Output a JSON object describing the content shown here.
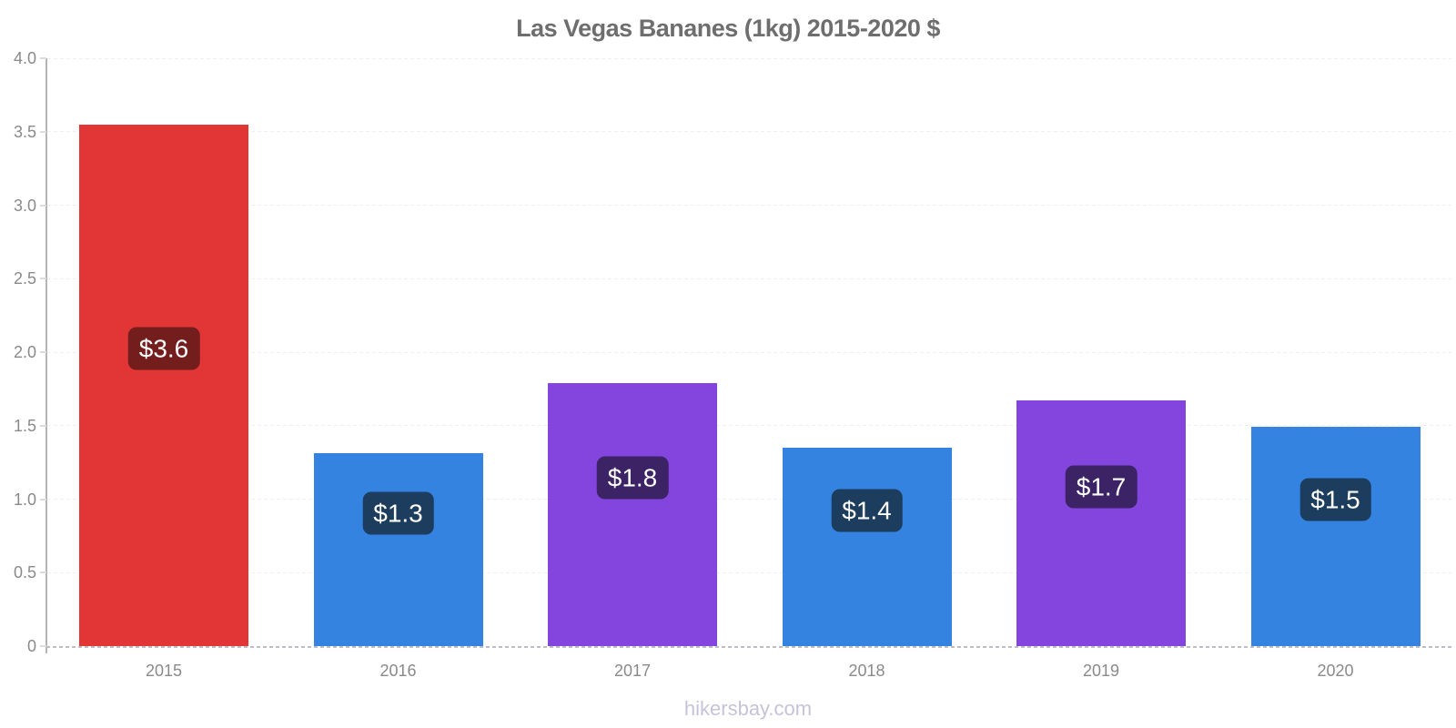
{
  "chart": {
    "title": "Las Vegas Bananes (1kg) 2015-2020 $"
  },
  "footer": {
    "site": "hikersbay.com"
  },
  "chart_data": {
    "type": "bar",
    "title": "Las Vegas Bananes (1kg) 2015-2020 $",
    "categories": [
      "2015",
      "2016",
      "2017",
      "2018",
      "2019",
      "2020"
    ],
    "values": [
      3.55,
      1.31,
      1.79,
      1.35,
      1.67,
      1.49
    ],
    "value_labels": [
      "$3.6",
      "$1.3",
      "$1.8",
      "$1.4",
      "$1.7",
      "$1.5"
    ],
    "bar_colors": [
      "#e23535",
      "#3483e0",
      "#8345de",
      "#3483e0",
      "#8345de",
      "#3483e0"
    ],
    "label_bg_colors": [
      "#731e1c",
      "#1d3d5e",
      "#3b2366",
      "#1d3d5e",
      "#3b2366",
      "#1d3d5e"
    ],
    "xlabel": "",
    "ylabel": "",
    "ylim": [
      0,
      4.0
    ],
    "yticks": [
      0,
      0.5,
      1.0,
      1.5,
      2.0,
      2.5,
      3.0,
      3.5,
      4.0
    ],
    "ytick_labels": [
      "0",
      "0.5",
      "1.0",
      "1.5",
      "2.0",
      "2.5",
      "3.0",
      "3.5",
      "4.0"
    ],
    "grid": "horizontal-dashed",
    "legend": "none",
    "currency": "$"
  },
  "colors": {
    "background": "#ffffff",
    "title_text": "#6e6e6e",
    "axis_line": "#b4b4b4",
    "tick_label": "#8a8a8a",
    "gridline": "#efeef3",
    "baseline": "#bdbdc6",
    "value_text": "#ffffff",
    "footer_text": "#c6c3d9"
  }
}
